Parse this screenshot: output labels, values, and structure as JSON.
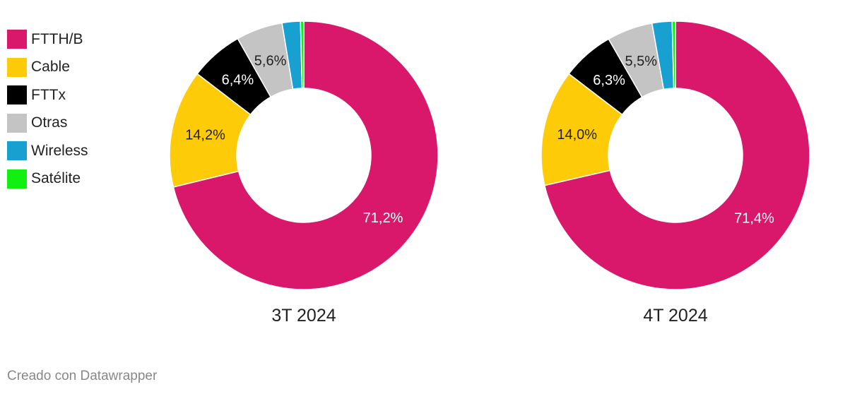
{
  "chart_data": [
    {
      "type": "pie",
      "title": "3T 2024",
      "series": [
        {
          "name": "FTTH/B",
          "value": 71.2,
          "label": "71,2%"
        },
        {
          "name": "Cable",
          "value": 14.2,
          "label": "14,2%"
        },
        {
          "name": "FTTx",
          "value": 6.4,
          "label": "6,4%"
        },
        {
          "name": "Otras",
          "value": 5.6,
          "label": "5,6%"
        },
        {
          "name": "Wireless",
          "value": 2.2,
          "label": ""
        },
        {
          "name": "Satélite",
          "value": 0.4,
          "label": ""
        }
      ]
    },
    {
      "type": "pie",
      "title": "4T 2024",
      "series": [
        {
          "name": "FTTH/B",
          "value": 71.4,
          "label": "71,4%"
        },
        {
          "name": "Cable",
          "value": 14.0,
          "label": "14,0%"
        },
        {
          "name": "FTTx",
          "value": 6.3,
          "label": "6,3%"
        },
        {
          "name": "Otras",
          "value": 5.5,
          "label": "5,5%"
        },
        {
          "name": "Wireless",
          "value": 2.4,
          "label": ""
        },
        {
          "name": "Satélite",
          "value": 0.4,
          "label": ""
        }
      ]
    }
  ],
  "legend": [
    {
      "label": "FTTH/B",
      "color": "#d9186b"
    },
    {
      "label": "Cable",
      "color": "#fecb09"
    },
    {
      "label": "FTTx",
      "color": "#000000"
    },
    {
      "label": "Otras",
      "color": "#c4c4c4"
    },
    {
      "label": "Wireless",
      "color": "#18a0d0"
    },
    {
      "label": "Satélite",
      "color": "#12f012"
    }
  ],
  "footer": "Creado con Datawrapper"
}
